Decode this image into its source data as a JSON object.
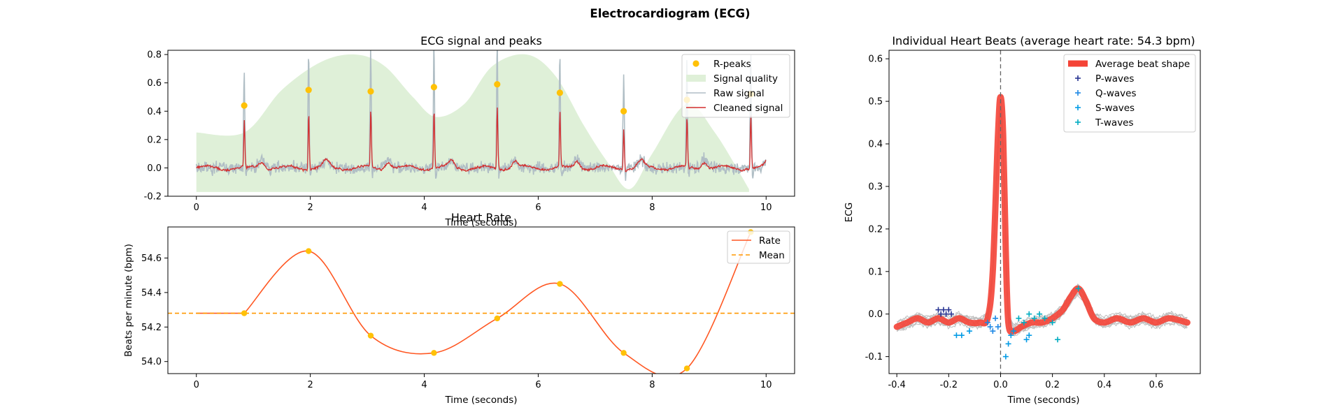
{
  "figure": {
    "title": "Electrocardiogram (ECG)"
  },
  "chart_data": [
    {
      "type": "line",
      "title": "ECG signal and peaks",
      "xlabel": "Time (seconds)",
      "ylabel": "",
      "xlim": [
        -0.5,
        10.5
      ],
      "ylim": [
        -0.2,
        0.83
      ],
      "xticks": [
        0,
        2,
        4,
        6,
        8,
        10
      ],
      "yticks": [
        -0.2,
        0.0,
        0.2,
        0.4,
        0.6,
        0.8
      ],
      "legend_position": "top-right",
      "legend": [
        "R-peaks",
        "Signal quality",
        "Raw signal",
        "Cleaned signal"
      ],
      "colors": {
        "rpeaks": "#FFC107",
        "quality": "#DFF0D8",
        "raw": "#B0BEC5",
        "cleaned": "#D32F2F"
      },
      "r_peaks": {
        "x": [
          0.84,
          1.97,
          3.06,
          4.17,
          5.28,
          6.38,
          7.5,
          8.61,
          9.73
        ],
        "y": [
          0.44,
          0.55,
          0.54,
          0.57,
          0.59,
          0.53,
          0.4,
          0.48,
          0.52
        ]
      },
      "signal_quality": {
        "x": [
          0.0,
          0.84,
          1.5,
          2.2,
          2.8,
          3.3,
          3.8,
          4.2,
          4.7,
          5.2,
          5.8,
          6.3,
          6.8,
          7.2,
          7.6,
          8.0,
          8.6,
          9.1,
          9.7
        ],
        "y": [
          0.25,
          0.25,
          0.55,
          0.75,
          0.8,
          0.72,
          0.5,
          0.36,
          0.45,
          0.72,
          0.8,
          0.65,
          0.3,
          0.05,
          -0.15,
          0.1,
          0.45,
          0.25,
          -0.15
        ]
      },
      "grid": false
    },
    {
      "type": "line",
      "title": "Heart Rate",
      "xlabel": "Time (seconds)",
      "ylabel": "Beats per minute (bpm)",
      "xlim": [
        -0.5,
        10.5
      ],
      "ylim": [
        53.93,
        54.78
      ],
      "xticks": [
        0,
        2,
        4,
        6,
        8,
        10
      ],
      "yticks": [
        54.0,
        54.2,
        54.4,
        54.6
      ],
      "legend_position": "top-right",
      "legend": [
        "Rate",
        "Mean"
      ],
      "colors": {
        "rate": "#FF5722",
        "mean": "#FF9800",
        "points": "#FFC107"
      },
      "mean": 54.28,
      "points": {
        "x": [
          0.84,
          1.97,
          3.06,
          4.17,
          5.28,
          6.38,
          7.5,
          8.61,
          9.73
        ],
        "y": [
          54.28,
          54.64,
          54.15,
          54.05,
          54.25,
          54.45,
          54.05,
          53.96,
          54.75
        ]
      },
      "grid": false
    },
    {
      "type": "line",
      "title": "Individual Heart Beats (average heart rate: 54.3 bpm)",
      "xlabel": "Time (seconds)",
      "ylabel": "ECG",
      "xlim": [
        -0.43,
        0.77
      ],
      "ylim": [
        -0.14,
        0.62
      ],
      "xticks": [
        -0.4,
        -0.2,
        0.0,
        0.2,
        0.4,
        0.6
      ],
      "yticks": [
        -0.1,
        0.0,
        0.1,
        0.2,
        0.3,
        0.4,
        0.5,
        0.6
      ],
      "legend_position": "top-right",
      "legend": [
        "Average beat shape",
        "P-waves",
        "Q-waves",
        "S-waves",
        "T-waves"
      ],
      "colors": {
        "average": "#F44336",
        "p": "#283593",
        "q": "#1E88E5",
        "s": "#039BE5",
        "t": "#00ACC1",
        "beats": "#BDBDBD"
      },
      "average_beat": {
        "x": [
          -0.4,
          -0.36,
          -0.32,
          -0.28,
          -0.24,
          -0.2,
          -0.16,
          -0.12,
          -0.08,
          -0.05,
          -0.03,
          -0.01,
          0.0,
          0.01,
          0.02,
          0.03,
          0.05,
          0.08,
          0.12,
          0.16,
          0.2,
          0.24,
          0.27,
          0.3,
          0.33,
          0.36,
          0.4,
          0.45,
          0.5,
          0.55,
          0.6,
          0.65,
          0.72
        ],
        "y": [
          -0.03,
          -0.02,
          -0.01,
          -0.02,
          -0.01,
          -0.02,
          -0.01,
          -0.02,
          -0.02,
          -0.01,
          0.1,
          0.42,
          0.51,
          0.42,
          0.15,
          -0.02,
          -0.04,
          -0.03,
          -0.02,
          -0.02,
          -0.01,
          0.01,
          0.04,
          0.06,
          0.03,
          -0.01,
          -0.02,
          -0.01,
          -0.02,
          -0.01,
          -0.02,
          -0.01,
          -0.02
        ]
      },
      "p_waves": {
        "x": [
          -0.24,
          -0.23,
          -0.22,
          -0.21,
          -0.2,
          -0.19
        ],
        "y": [
          0.01,
          0.0,
          0.01,
          0.0,
          0.01,
          0.0
        ]
      },
      "q_waves": {
        "x": [
          -0.05,
          -0.04,
          -0.03,
          -0.02,
          -0.01
        ],
        "y": [
          -0.02,
          -0.03,
          -0.04,
          -0.01,
          -0.03
        ]
      },
      "s_waves": {
        "x": [
          0.02,
          0.03,
          0.04,
          0.05,
          0.1,
          0.11,
          -0.12,
          -0.15,
          -0.17
        ],
        "y": [
          -0.1,
          -0.07,
          -0.05,
          -0.04,
          -0.06,
          -0.05,
          -0.04,
          -0.05,
          -0.05
        ]
      },
      "t_waves": {
        "x": [
          0.07,
          0.09,
          0.11,
          0.13,
          0.15,
          0.17,
          0.2,
          0.22,
          0.3
        ],
        "y": [
          -0.01,
          -0.02,
          0.0,
          -0.01,
          0.0,
          -0.01,
          -0.02,
          -0.06,
          0.06
        ]
      },
      "grid": false
    }
  ]
}
